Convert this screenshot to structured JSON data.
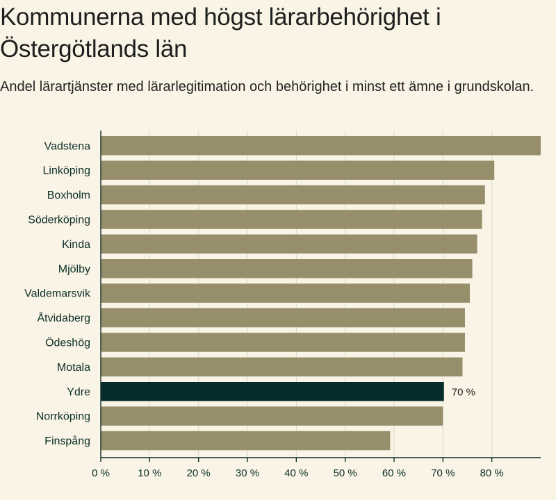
{
  "chart_data": {
    "type": "bar",
    "orientation": "horizontal",
    "title": "Kommunerna med högst lärarbehörighet i Östergötlands län",
    "subtitle": "Andel lärartjänster med lärarlegitimation och behörighet i minst ett ämne i grundskolan.",
    "xlabel": "",
    "ylabel": "",
    "xlim": [
      0,
      90
    ],
    "grid": true,
    "categories": [
      "Vadstena",
      "Linköping",
      "Boxholm",
      "Söderköping",
      "Kinda",
      "Mjölby",
      "Valdemarsvik",
      "Åtvidaberg",
      "Ödeshög",
      "Motala",
      "Ydre",
      "Norrköping",
      "Finspång"
    ],
    "values": [
      90,
      80.5,
      78.6,
      78,
      77,
      76,
      75.5,
      74.5,
      74.5,
      74,
      70.2,
      70,
      59.2
    ],
    "x_ticks": [
      0,
      10,
      20,
      30,
      40,
      50,
      60,
      70,
      80
    ],
    "x_tick_labels": [
      "0 %",
      "10 %",
      "20 %",
      "30 %",
      "40 %",
      "50 %",
      "60 %",
      "70 %",
      "80 %"
    ],
    "highlight": {
      "category": "Ydre",
      "label": "70 %"
    },
    "colors": {
      "bar": "#978f6c",
      "highlight": "#052b2a",
      "grid": "#dddccd",
      "axis": "#0b2e28",
      "background": "#f9f4e5"
    }
  }
}
